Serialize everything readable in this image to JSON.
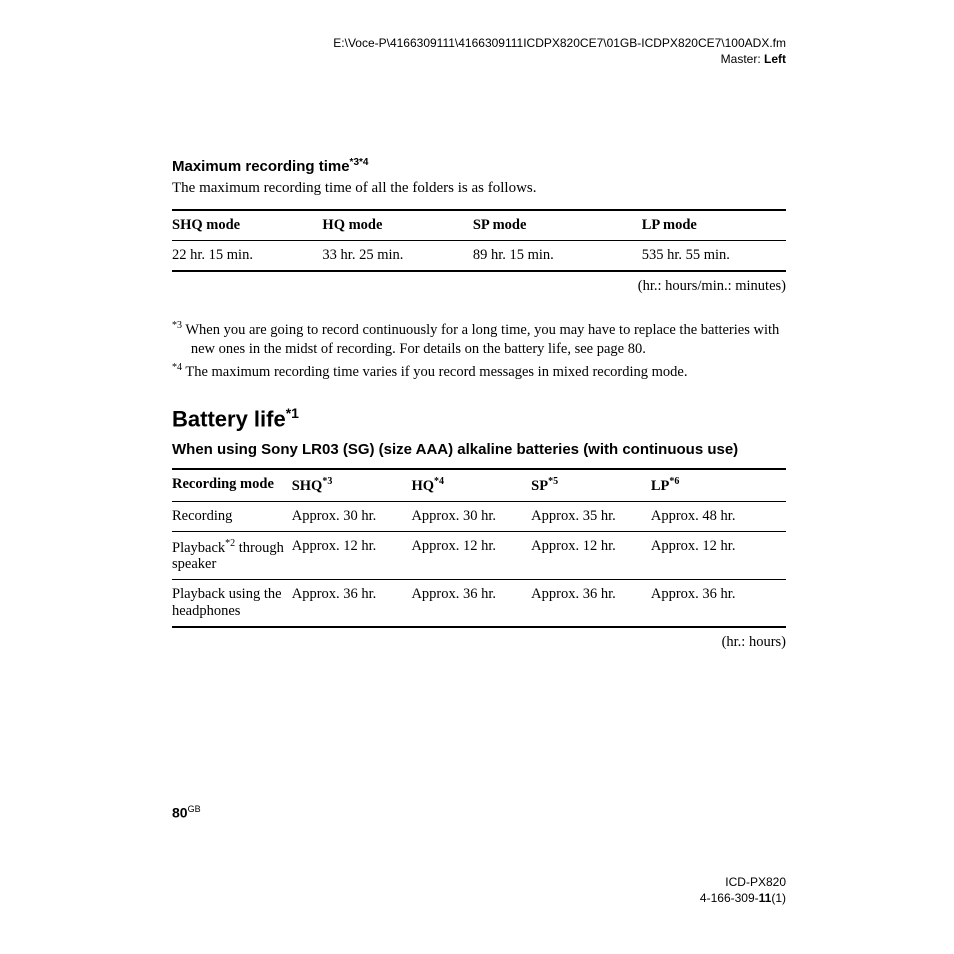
{
  "header": {
    "path": "E:\\Voce-P\\4166309111\\4166309111ICDPX820CE7\\01GB-ICDPX820CE7\\100ADX.fm",
    "master_label": "Master: ",
    "master_value": "Left"
  },
  "section1": {
    "heading_pre": "Maximum recording time",
    "heading_sup": "*3*4",
    "intro": "The maximum recording time of all the folders is as follows.",
    "table": {
      "headers": [
        "SHQ mode",
        "HQ mode",
        "SP mode",
        "LP mode"
      ],
      "row": [
        "22 hr. 15 min.",
        "33 hr. 25 min.",
        "89 hr. 15 min.",
        "535 hr. 55 min."
      ]
    },
    "note": "(hr.: hours/min.: minutes)",
    "footnotes": [
      {
        "sup": "*3",
        "text": " When you are going to record continuously for a long time, you may have to replace the batteries with new ones in the midst of recording. For details on the battery life, see page 80."
      },
      {
        "sup": "*4",
        "text": " The maximum recording time varies if you record messages in mixed recording mode."
      }
    ]
  },
  "section2": {
    "heading_pre": "Battery life",
    "heading_sup": "*1",
    "subheading": "When using Sony LR03 (SG) (size AAA) alkaline batteries (with continuous use)",
    "table": {
      "headers": [
        {
          "label": "Recording mode",
          "sup": ""
        },
        {
          "label": "SHQ",
          "sup": "*3"
        },
        {
          "label": "HQ",
          "sup": "*4"
        },
        {
          "label": "SP",
          "sup": "*5"
        },
        {
          "label": "LP",
          "sup": "*6"
        }
      ],
      "rows": [
        {
          "label": "Recording",
          "label_sup": "",
          "cells": [
            "Approx. 30 hr.",
            "Approx. 30 hr.",
            "Approx. 35 hr.",
            "Approx. 48 hr."
          ]
        },
        {
          "label": "Playback",
          "label_sup": "*2",
          "label_after": " through speaker",
          "cells": [
            "Approx. 12 hr.",
            "Approx. 12 hr.",
            "Approx. 12 hr.",
            "Approx. 12 hr."
          ]
        },
        {
          "label": "Playback using the headphones",
          "label_sup": "",
          "cells": [
            "Approx. 36 hr.",
            "Approx. 36 hr.",
            "Approx. 36 hr.",
            "Approx. 36 hr."
          ]
        }
      ]
    },
    "note": "(hr.: hours)"
  },
  "page_number": "80",
  "page_gb": "GB",
  "footer": {
    "model": "ICD-PX820",
    "code_pre": "4-166-309-",
    "code_bold": "11",
    "code_post": "(1)"
  }
}
